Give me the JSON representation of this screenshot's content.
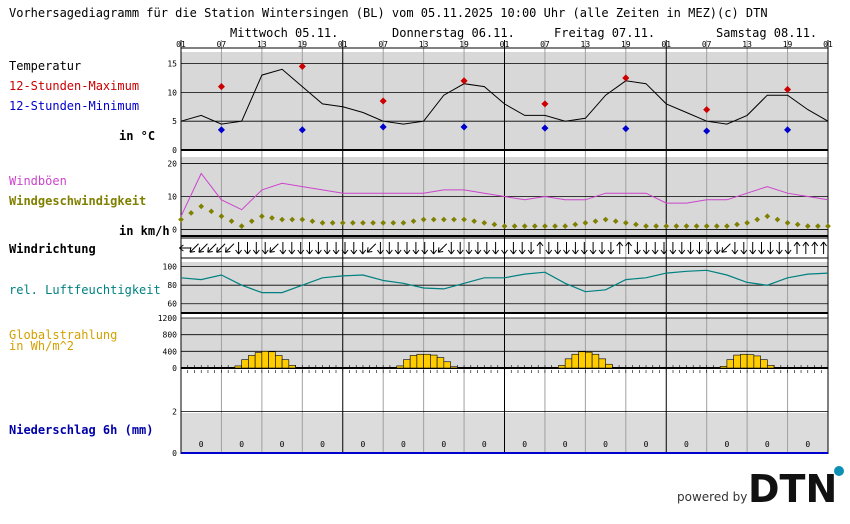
{
  "header": {
    "title": "Vorhersagediagramm für die Station Wintersingen (BL) vom 05.11.2025 10:00 Uhr (alle Zeiten in MEZ)",
    "copyright": "(c) DTN"
  },
  "days": [
    "Mittwoch 05.11.",
    "Donnerstag 06.11.",
    "Freitag 07.11.",
    "Samstag 08.11."
  ],
  "hour_ticks": [
    "01",
    "07",
    "13",
    "19",
    "01",
    "07",
    "13",
    "19",
    "01",
    "07",
    "13",
    "19",
    "01",
    "07",
    "13",
    "19",
    "01"
  ],
  "labels": {
    "temperature": "Temperatur",
    "tmax": "12-Stunden-Maximum",
    "tmin": "12-Stunden-Minimum",
    "temp_unit": "in °C",
    "gust": "Windböen",
    "wind_speed": "Windgeschwindigkeit",
    "wind_unit": "in km/h",
    "wind_dir": "Windrichtung",
    "humidity": "rel. Luftfeuchtigkeit",
    "radiation_1": "Globalstrahlung",
    "radiation_2": "in Wh/m^2",
    "precip": "Niederschlag 6h (mm)"
  },
  "footer": {
    "powered": "powered by",
    "logo": "DTN"
  },
  "colors": {
    "temp": "#000000",
    "tmax": "#cc0000",
    "tmin": "#0000cc",
    "gust": "#cc44cc",
    "wind": "#808000",
    "humidity": "#008080",
    "radiation": "#ffcc00",
    "precip_label": "#0000aa",
    "panel": "#d8d8d8"
  },
  "chart_data": [
    {
      "type": "line",
      "name": "Temperatur",
      "x_hours": [
        0,
        3,
        6,
        9,
        12,
        15,
        18,
        21,
        24,
        27,
        30,
        33,
        36,
        39,
        42,
        45,
        48,
        51,
        54,
        57,
        60,
        63,
        66,
        69,
        72,
        75,
        78,
        81,
        84,
        87,
        90,
        93,
        96
      ],
      "y_ticks": [
        0,
        5,
        10,
        15
      ],
      "ylim": [
        0,
        17
      ],
      "temperature": [
        5,
        6,
        4.5,
        5,
        13,
        14,
        11,
        8,
        7.5,
        6.5,
        5,
        4.5,
        5,
        9.5,
        11.5,
        11,
        8,
        6,
        6,
        5,
        5.5,
        9.5,
        12,
        11.5,
        8,
        6.5,
        5,
        4.5,
        6,
        9.5,
        9.5,
        7,
        5
      ],
      "tmax": [
        {
          "x": 6,
          "y": 11
        },
        {
          "x": 18,
          "y": 14.5
        },
        {
          "x": 30,
          "y": 8.5
        },
        {
          "x": 42,
          "y": 12
        },
        {
          "x": 54,
          "y": 8
        },
        {
          "x": 66,
          "y": 12.5
        },
        {
          "x": 78,
          "y": 7
        },
        {
          "x": 90,
          "y": 10.5
        }
      ],
      "tmin": [
        {
          "x": 6,
          "y": 3.5
        },
        {
          "x": 18,
          "y": 3.5
        },
        {
          "x": 30,
          "y": 4
        },
        {
          "x": 42,
          "y": 4
        },
        {
          "x": 54,
          "y": 3.8
        },
        {
          "x": 66,
          "y": 3.7
        },
        {
          "x": 78,
          "y": 3.3
        },
        {
          "x": 90,
          "y": 3.5
        }
      ]
    },
    {
      "type": "line",
      "name": "Wind",
      "x_hours": [
        0,
        3,
        6,
        9,
        12,
        15,
        18,
        21,
        24,
        27,
        30,
        33,
        36,
        39,
        42,
        45,
        48,
        51,
        54,
        57,
        60,
        63,
        66,
        69,
        72,
        75,
        78,
        81,
        84,
        87,
        90,
        93,
        96
      ],
      "y_ticks": [
        0,
        10,
        20
      ],
      "ylim": [
        -2,
        22
      ],
      "gust": [
        4,
        17,
        9,
        6,
        12,
        14,
        13,
        12,
        11,
        11,
        11,
        11,
        11,
        12,
        12,
        11,
        10,
        9,
        10,
        9,
        9,
        11,
        11,
        11,
        8,
        8,
        9,
        9,
        11,
        13,
        11,
        10,
        9
      ],
      "wind": [
        3,
        7,
        4,
        1,
        4,
        3,
        3,
        2,
        2,
        2,
        2,
        2,
        3,
        3,
        3,
        2,
        1,
        1,
        1,
        1,
        2,
        3,
        2,
        1,
        1,
        1,
        1,
        1,
        2,
        4,
        2,
        1,
        1
      ]
    },
    {
      "type": "direction",
      "name": "Windrichtung",
      "direction_deg": [
        0,
        315,
        315,
        315,
        315,
        315,
        270,
        270,
        270,
        270,
        315,
        270,
        270,
        270,
        270,
        270,
        270,
        270,
        270,
        270,
        270,
        315,
        270,
        270,
        270,
        270,
        270,
        270,
        270,
        315,
        270,
        270,
        270,
        270,
        270,
        270,
        270,
        270,
        270,
        270,
        90,
        270,
        270,
        270,
        270,
        270,
        270,
        270,
        270,
        90,
        90,
        270,
        270,
        270,
        270,
        270,
        270,
        270,
        270,
        270,
        270,
        315,
        270,
        270,
        270,
        270,
        270,
        270,
        270,
        90,
        90,
        90,
        90
      ]
    },
    {
      "type": "line",
      "name": "rel. Luftfeuchtigkeit",
      "x_hours": [
        0,
        3,
        6,
        9,
        12,
        15,
        18,
        21,
        24,
        27,
        30,
        33,
        36,
        39,
        42,
        45,
        48,
        51,
        54,
        57,
        60,
        63,
        66,
        69,
        72,
        75,
        78,
        81,
        84,
        87,
        90,
        93,
        96
      ],
      "y_ticks": [
        60,
        80,
        100
      ],
      "ylim": [
        50,
        105
      ],
      "humidity": [
        88,
        86,
        91,
        80,
        72,
        72,
        80,
        88,
        90,
        91,
        85,
        82,
        77,
        76,
        82,
        88,
        88,
        92,
        94,
        82,
        73,
        75,
        86,
        88,
        93,
        95,
        96,
        91,
        83,
        80,
        88,
        92,
        93
      ]
    },
    {
      "type": "bar",
      "name": "Globalstrahlung",
      "y_ticks": [
        0,
        400,
        800,
        1200
      ],
      "ylim": [
        0,
        1200
      ],
      "radiation": [
        0,
        0,
        0,
        0,
        0,
        0,
        0,
        0,
        50,
        200,
        300,
        370,
        400,
        390,
        300,
        200,
        60,
        0,
        0,
        0,
        0,
        0,
        0,
        0,
        0,
        0,
        0,
        0,
        0,
        0,
        0,
        0,
        50,
        200,
        300,
        330,
        330,
        310,
        250,
        150,
        30,
        0,
        0,
        0,
        0,
        0,
        0,
        0,
        0,
        0,
        0,
        0,
        0,
        0,
        0,
        0,
        60,
        220,
        330,
        390,
        380,
        330,
        220,
        90,
        0,
        0,
        0,
        0,
        0,
        0,
        0,
        0,
        0,
        0,
        0,
        0,
        0,
        0,
        0,
        0,
        40,
        200,
        310,
        330,
        320,
        290,
        200,
        60,
        0,
        0,
        0,
        0,
        0,
        0,
        0,
        0
      ]
    },
    {
      "type": "bar",
      "name": "Niederschlag 6h",
      "y_ticks": [
        0,
        2
      ],
      "ylim": [
        0,
        4
      ],
      "precip": [
        0,
        0,
        0,
        0,
        0,
        0,
        0,
        0,
        0,
        0,
        0,
        0,
        0,
        0,
        0,
        0
      ],
      "precip_labels": [
        "0",
        "0",
        "0",
        "0",
        "0",
        "0",
        "0",
        "0",
        "0",
        "0",
        "0",
        "0",
        "0",
        "0",
        "0",
        "0"
      ]
    }
  ]
}
